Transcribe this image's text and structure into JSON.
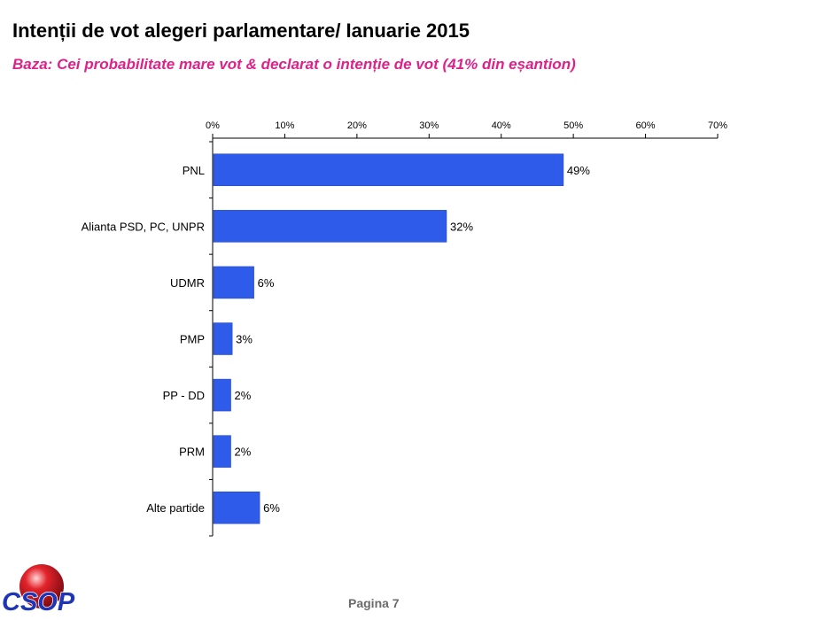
{
  "chart_data": {
    "type": "bar",
    "orientation": "horizontal",
    "title": "Intenții de vot alegeri parlamentare/ Ianuarie 2015",
    "subtitle": "Baza: Cei probabilitate mare vot & declarat o intenție de vot (41% din eșantion)",
    "categories": [
      "PNL",
      "Alianta PSD, PC, UNPR",
      "UDMR",
      "PMP",
      "PP - DD",
      "PRM",
      "Alte partide"
    ],
    "values": [
      48.5,
      32.3,
      5.6,
      2.6,
      2.4,
      2.4,
      6.4
    ],
    "data_labels": [
      "49%",
      "32%",
      "6%",
      "3%",
      "2%",
      "2%",
      "6%"
    ],
    "xlim": [
      0,
      70
    ],
    "x_ticks": [
      0,
      10,
      20,
      30,
      40,
      50,
      60,
      70
    ],
    "x_tick_labels": [
      "0%",
      "10%",
      "20%",
      "30%",
      "40%",
      "50%",
      "60%",
      "70%"
    ],
    "axis_position": "top",
    "grid": false,
    "legend": "none",
    "bar_color": "#2f5bea"
  },
  "logo": {
    "text": "CSOP",
    "sphere_color": "#e3232b",
    "text_color": "#1f35b5"
  },
  "footer": {
    "page_label": "Pagina  7"
  }
}
